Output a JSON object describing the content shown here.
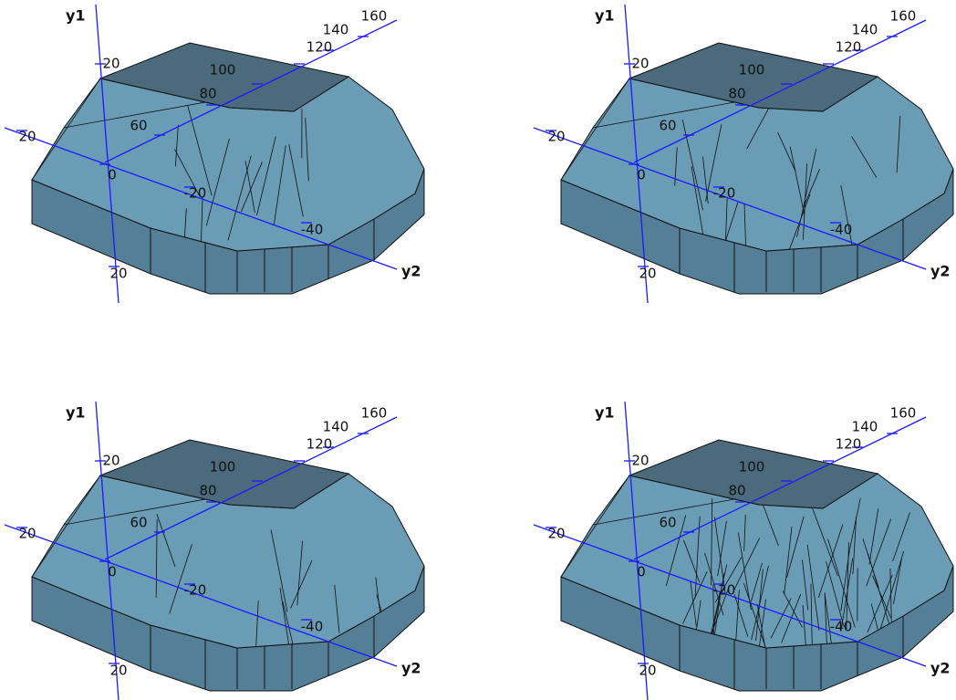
{
  "panels": [
    {
      "vertical_axis_label": "y1",
      "depth_axis_label": "y2",
      "ticks": [
        "20",
        "0",
        "20",
        "20",
        "-20",
        "-40",
        "60",
        "80",
        "100",
        "120",
        "140",
        "160"
      ]
    },
    {
      "vertical_axis_label": "y1",
      "depth_axis_label": "y2",
      "ticks": [
        "20",
        "0",
        "20",
        "20",
        "-20",
        "-40",
        "60",
        "80",
        "100",
        "120",
        "140",
        "160"
      ]
    },
    {
      "vertical_axis_label": "y1",
      "depth_axis_label": "y2",
      "ticks": [
        "20",
        "0",
        "20",
        "20",
        "-20",
        "-40",
        "60",
        "80",
        "100",
        "120",
        "140",
        "160"
      ]
    },
    {
      "vertical_axis_label": "y1",
      "depth_axis_label": "y2",
      "ticks": [
        "20",
        "0",
        "20",
        "20",
        "-20",
        "-40",
        "60",
        "80",
        "100",
        "120",
        "140",
        "160"
      ]
    }
  ]
}
